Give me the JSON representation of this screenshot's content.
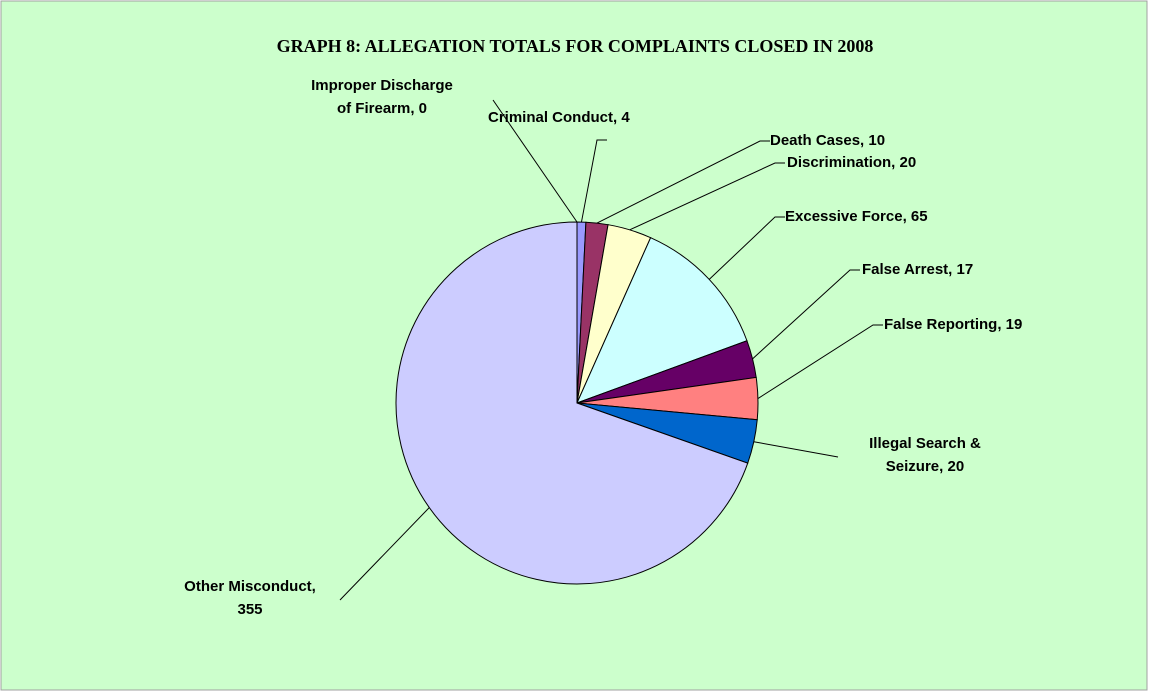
{
  "chart_data": {
    "type": "pie",
    "title": "GRAPH 8: ALLEGATION TOTALS FOR COMPLAINTS CLOSED IN 2008",
    "values": [
      0,
      4,
      10,
      20,
      65,
      17,
      19,
      20,
      355
    ],
    "value_labels": [
      [
        "Improper Discharge",
        "of Firearm, 0"
      ],
      [
        "Criminal Conduct, 4"
      ],
      [
        "Death Cases, 10"
      ],
      [
        "Discrimination, 20"
      ],
      [
        "Excessive Force, 65"
      ],
      [
        "False Arrest, 17"
      ],
      [
        "False Reporting, 19"
      ],
      [
        "Illegal Search &",
        "Seizure, 20"
      ],
      [
        "Other Misconduct,",
        "355"
      ]
    ],
    "colors": [
      "#000080",
      "#9999ff",
      "#993366",
      "#ffffcc",
      "#ccffff",
      "#660066",
      "#ff8080",
      "#0066cc",
      "#ccccff"
    ]
  }
}
